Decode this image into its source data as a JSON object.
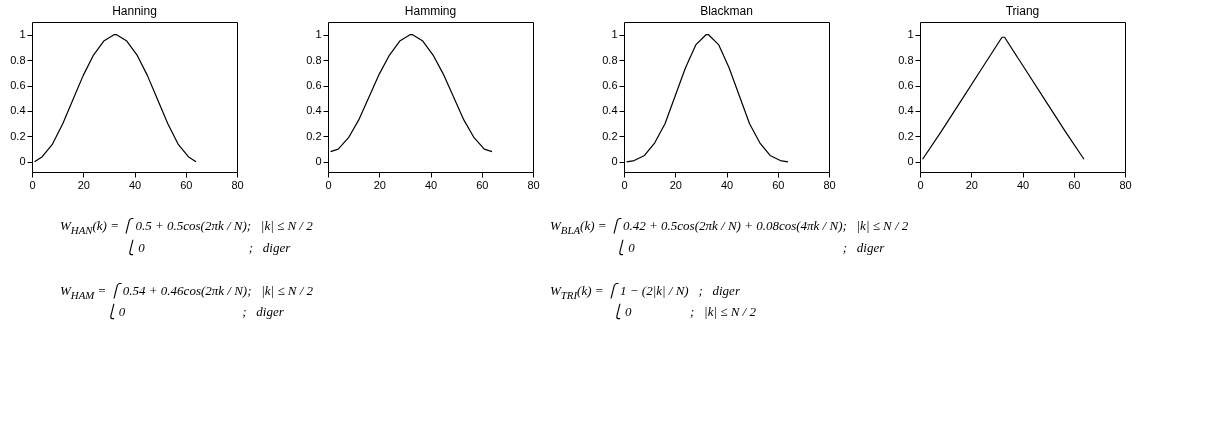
{
  "chart_data": [
    {
      "type": "line",
      "title": "Hanning",
      "x": [
        1,
        4,
        8,
        12,
        16,
        20,
        24,
        28,
        32,
        33,
        37,
        41,
        45,
        49,
        53,
        57,
        61,
        64
      ],
      "series": [
        {
          "color": "#000000",
          "values": [
            0.0,
            0.04,
            0.14,
            0.3,
            0.49,
            0.68,
            0.84,
            0.95,
            1.0,
            1.0,
            0.95,
            0.84,
            0.68,
            0.49,
            0.3,
            0.14,
            0.04,
            0.0
          ]
        }
      ],
      "xlim": [
        0,
        80
      ],
      "xticks": [
        0,
        20,
        40,
        60,
        80
      ],
      "ylim": [
        -0.08,
        1.1
      ],
      "yticks": [
        0,
        0.2,
        0.4,
        0.6,
        0.8,
        1
      ],
      "annotations": [
        "W$_{HAN}$(k) = ⎧ 0.5 + 0.5cos(2πk / N);   |k| ≤ N / 2\n                    ⎩ 0                                ;   diger"
      ]
    },
    {
      "type": "line",
      "title": "Hamming",
      "x": [
        1,
        4,
        8,
        12,
        16,
        20,
        24,
        28,
        32,
        33,
        37,
        41,
        45,
        49,
        53,
        57,
        61,
        64
      ],
      "series": [
        {
          "color": "#000000",
          "values": [
            0.08,
            0.1,
            0.19,
            0.33,
            0.51,
            0.69,
            0.84,
            0.95,
            1.0,
            1.0,
            0.95,
            0.84,
            0.69,
            0.51,
            0.33,
            0.19,
            0.1,
            0.08
          ]
        }
      ],
      "xlim": [
        0,
        80
      ],
      "xticks": [
        0,
        20,
        40,
        60,
        80
      ],
      "ylim": [
        -0.08,
        1.1
      ],
      "yticks": [
        0,
        0.2,
        0.4,
        0.6,
        0.8,
        1
      ],
      "annotations": [
        "W$_{HAM}$ = ⎧ 0.54 + 0.46cos(2πk / N);   |k| ≤ N / 2\n              ⎩ 0                                    ;   diger"
      ]
    },
    {
      "type": "line",
      "title": "Blackman",
      "x": [
        1,
        4,
        8,
        12,
        16,
        20,
        24,
        28,
        32,
        33,
        37,
        41,
        45,
        49,
        53,
        57,
        61,
        64
      ],
      "series": [
        {
          "color": "#000000",
          "values": [
            0.0,
            0.01,
            0.05,
            0.15,
            0.3,
            0.52,
            0.74,
            0.92,
            1.0,
            1.0,
            0.92,
            0.74,
            0.52,
            0.3,
            0.15,
            0.05,
            0.01,
            0.0
          ]
        }
      ],
      "xlim": [
        0,
        80
      ],
      "xticks": [
        0,
        20,
        40,
        60,
        80
      ],
      "ylim": [
        -0.08,
        1.1
      ],
      "yticks": [
        0,
        0.2,
        0.4,
        0.6,
        0.8,
        1
      ],
      "annotations": [
        "W$_{BLA}$(k) = ⎧ 0.42 + 0.5cos(2πk / N) + 0.08cos(4πk / N);   |k| ≤ N / 2\n                    ⎩ 0                                                                ;   diger"
      ]
    },
    {
      "type": "line",
      "title": "Triang",
      "x": [
        1,
        8,
        16,
        24,
        32,
        33,
        41,
        49,
        57,
        64
      ],
      "series": [
        {
          "color": "#000000",
          "values": [
            0.02,
            0.23,
            0.48,
            0.73,
            0.98,
            0.98,
            0.73,
            0.48,
            0.23,
            0.02
          ]
        }
      ],
      "xlim": [
        0,
        80
      ],
      "xticks": [
        0,
        20,
        40,
        60,
        80
      ],
      "ylim": [
        -0.08,
        1.1
      ],
      "yticks": [
        0,
        0.2,
        0.4,
        0.6,
        0.8,
        1
      ],
      "annotations": [
        "W$_{TRI}$(k) = ⎧ 1 − (2|k| / N)   ;   diger\n                   ⎩ 0                  ;   |k| ≤ N / 2"
      ]
    }
  ]
}
